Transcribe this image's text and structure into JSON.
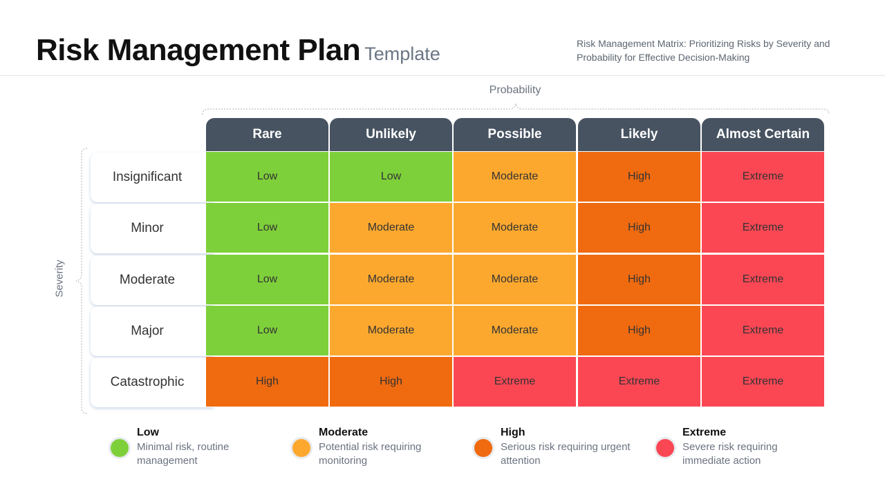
{
  "header": {
    "title": "Risk Management Plan",
    "subtitle": "Template",
    "description": "Risk Management Matrix: Prioritizing Risks by Severity and Probability for Effective Decision-Making"
  },
  "axes": {
    "probability": "Probability",
    "severity": "Severity"
  },
  "matrix": {
    "columns": [
      "Rare",
      "Unlikely",
      "Possible",
      "Likely",
      "Almost Certain"
    ],
    "rows": [
      {
        "label": "Insignificant",
        "cells": [
          "Low",
          "Low",
          "Moderate",
          "High",
          "Extreme"
        ]
      },
      {
        "label": "Minor",
        "cells": [
          "Low",
          "Moderate",
          "Moderate",
          "High",
          "Extreme"
        ]
      },
      {
        "label": "Moderate",
        "cells": [
          "Low",
          "Moderate",
          "Moderate",
          "High",
          "Extreme"
        ]
      },
      {
        "label": "Major",
        "cells": [
          "Low",
          "Moderate",
          "Moderate",
          "High",
          "Extreme"
        ]
      },
      {
        "label": "Catastrophic",
        "cells": [
          "High",
          "High",
          "Extreme",
          "Extreme",
          "Extreme"
        ]
      }
    ]
  },
  "colors": {
    "Low": "#7ed03a",
    "Moderate": "#fca82e",
    "High": "#f06a0f",
    "Extreme": "#fb4754",
    "header": "#475361"
  },
  "legend": [
    {
      "title": "Low",
      "desc": "Minimal risk, routine management"
    },
    {
      "title": "Moderate",
      "desc": "Potential risk requiring monitoring"
    },
    {
      "title": "High",
      "desc": "Serious risk requiring urgent attention"
    },
    {
      "title": "Extreme",
      "desc": "Severe risk requiring immediate action"
    }
  ]
}
